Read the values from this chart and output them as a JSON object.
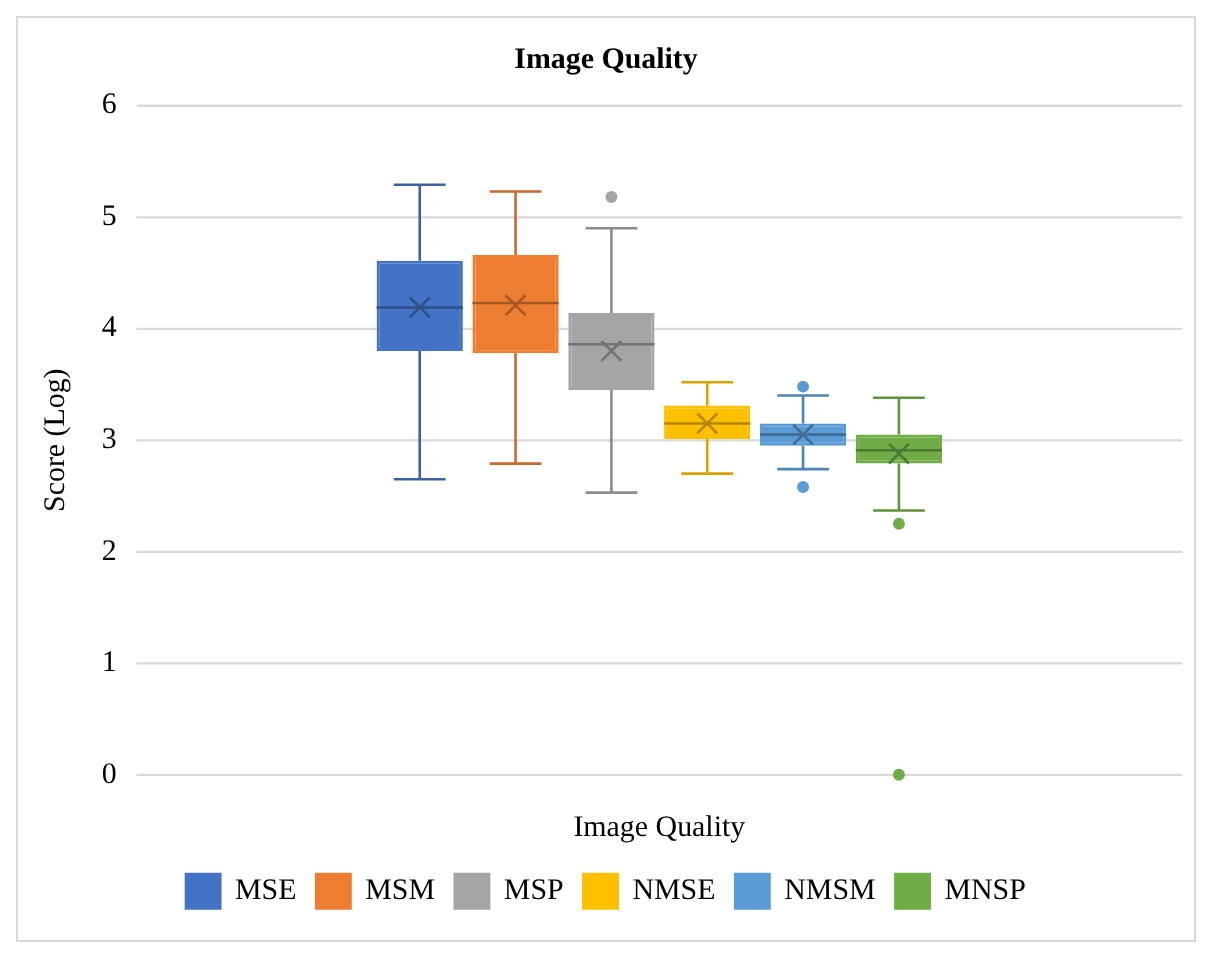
{
  "chart_data": {
    "type": "box",
    "title": "Image Quality",
    "xlabel": "Image Quality",
    "ylabel": "Score (Log)",
    "categories": [
      null
    ],
    "ylim": [
      0,
      6
    ],
    "yticks": [
      0,
      1,
      2,
      3,
      4,
      5,
      6
    ],
    "grid": "y",
    "legend": "bottom",
    "series": [
      {
        "name": "MSE",
        "color": "#4472c4",
        "boxes": [
          {
            "low": 2.65,
            "q1": 3.8,
            "median": 4.19,
            "q3": 4.61,
            "high": 5.29,
            "mean": 4.19
          }
        ]
      },
      {
        "name": "MSM",
        "color": "#ed7d31",
        "boxes": [
          {
            "low": 2.79,
            "q1": 3.78,
            "median": 4.23,
            "q3": 4.66,
            "high": 5.23,
            "mean": 4.21
          }
        ]
      },
      {
        "name": "MSP",
        "color": "#a5a5a5",
        "boxes": [
          {
            "low": 2.53,
            "q1": 3.45,
            "median": 3.86,
            "q3": 4.14,
            "high": 4.9,
            "mean": 3.8,
            "outliers": [
              5.18
            ]
          }
        ]
      },
      {
        "name": "NMSE",
        "color": "#ffc000",
        "boxes": [
          {
            "low": 2.7,
            "q1": 3.01,
            "median": 3.15,
            "q3": 3.31,
            "high": 3.52,
            "mean": 3.15
          }
        ]
      },
      {
        "name": "NMSM",
        "color": "#5b9bd5",
        "boxes": [
          {
            "low": 2.74,
            "q1": 2.95,
            "median": 3.05,
            "q3": 3.15,
            "high": 3.4,
            "mean": 3.05,
            "outliers": [
              3.48,
              2.58
            ]
          }
        ]
      },
      {
        "name": "MNSP",
        "color": "#70ad47",
        "boxes": [
          {
            "low": 2.37,
            "q1": 2.79,
            "median": 2.91,
            "q3": 3.05,
            "high": 3.38,
            "mean": 2.88,
            "outliers": [
              2.25,
              0
            ]
          }
        ]
      }
    ]
  }
}
